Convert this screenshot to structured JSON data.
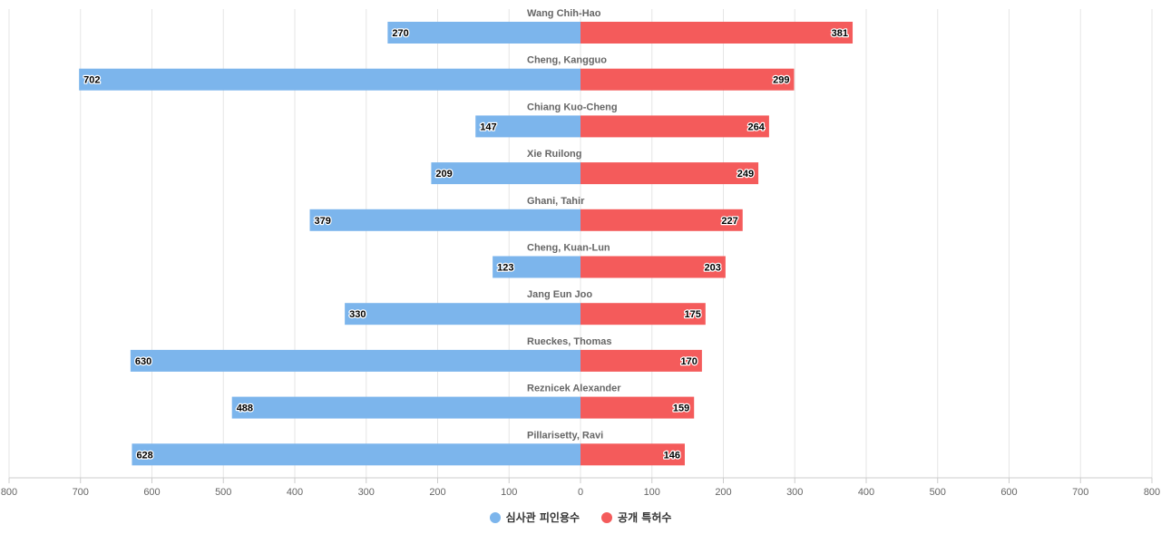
{
  "chart_data": {
    "type": "bar",
    "orientation": "horizontal-diverging",
    "categories": [
      "Wang Chih-Hao",
      "Cheng, Kangguo",
      "Chiang Kuo-Cheng",
      "Xie Ruilong",
      "Ghani, Tahir",
      "Cheng, Kuan-Lun",
      "Jang Eun Joo",
      "Rueckes, Thomas",
      "Reznicek Alexander",
      "Pillarisetty, Ravi"
    ],
    "series": [
      {
        "name": "심사관 피인용수",
        "color": "#7cb5ec",
        "direction": "left",
        "values": [
          270,
          702,
          147,
          209,
          379,
          123,
          330,
          630,
          488,
          628
        ]
      },
      {
        "name": "공개 특허수",
        "color": "#f45b5b",
        "direction": "right",
        "values": [
          381,
          299,
          264,
          249,
          227,
          203,
          175,
          170,
          159,
          146
        ]
      }
    ],
    "x_ticks": [
      "800",
      "700",
      "600",
      "500",
      "400",
      "300",
      "200",
      "100",
      "0",
      "100",
      "200",
      "300",
      "400",
      "500",
      "600",
      "700",
      "800"
    ],
    "xlim": [
      -800,
      800
    ],
    "grid": true,
    "legend_position": "bottom-center"
  }
}
